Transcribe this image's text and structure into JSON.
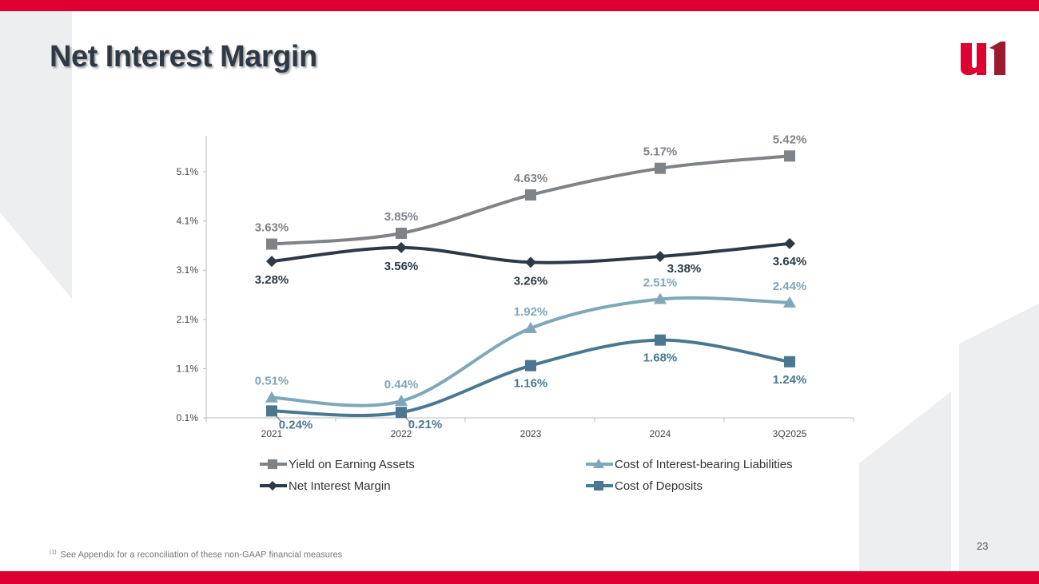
{
  "header": {
    "title": "Net Interest Margin",
    "logo_text": "u1"
  },
  "footer": {
    "footnote_marker": "(1)",
    "footnote": "See Appendix for a reconciliation of these non-GAAP financial measures",
    "page_number": "23"
  },
  "colors": {
    "brand": "#de0030",
    "yield": "#7f8287",
    "nim": "#2d3a46",
    "cost_ibl": "#7ea7ba",
    "cost_dep": "#4a7890"
  },
  "chart_data": {
    "type": "line",
    "categories": [
      "2021",
      "2022",
      "2023",
      "2024",
      "3Q2025"
    ],
    "y_ticks": [
      "0.1%",
      "1.1%",
      "2.1%",
      "3.1%",
      "4.1%",
      "5.1%"
    ],
    "ylim": [
      0.1,
      5.8
    ],
    "series": [
      {
        "name": "Yield on Earning Assets",
        "marker": "square",
        "color": "#7f8287",
        "values": [
          3.63,
          3.85,
          4.63,
          5.17,
          5.42
        ],
        "labels": [
          "3.63%",
          "3.85%",
          "4.63%",
          "5.17%",
          "5.42%"
        ]
      },
      {
        "name": "Net Interest Margin",
        "marker": "diamond",
        "color": "#2d3a46",
        "values": [
          3.28,
          3.56,
          3.26,
          3.38,
          3.64
        ],
        "labels": [
          "3.28%",
          "3.56%",
          "3.26%",
          "3.38%",
          "3.64%"
        ]
      },
      {
        "name": "Cost of Interest-bearing Liabilities",
        "marker": "triangle",
        "color": "#7ea7ba",
        "values": [
          0.51,
          0.44,
          1.92,
          2.51,
          2.44
        ],
        "labels": [
          "0.51%",
          "0.44%",
          "1.92%",
          "2.51%",
          "2.44%"
        ]
      },
      {
        "name": "Cost of Deposits",
        "marker": "square",
        "color": "#4a7890",
        "values": [
          0.24,
          0.21,
          1.16,
          1.68,
          1.24
        ],
        "labels": [
          "0.24%",
          "0.21%",
          "1.16%",
          "1.68%",
          "1.24%"
        ]
      }
    ],
    "legend_position": "bottom"
  }
}
